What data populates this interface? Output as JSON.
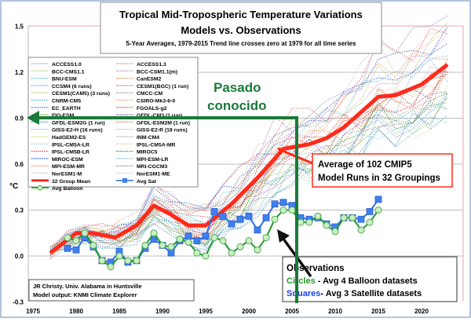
{
  "chart_data": {
    "type": "line",
    "title": "Tropical Mid-Tropospheric Temperature Variations",
    "subtitle_line1": "Models vs. Observations",
    "subtitle_line2": "5-Year Averages, 1979-2015 Trend line crosses zero at 1979 for all time series",
    "ylabel": "°C",
    "xlim": [
      1975,
      2025
    ],
    "ylim": [
      -0.3,
      1.5
    ],
    "x_ticks": [
      "1975",
      "1980",
      "1985",
      "1990",
      "1995",
      "2000",
      "2005",
      "2010",
      "2015",
      "2020"
    ],
    "y_ticks": [
      "1.5",
      "1.2",
      "0.9",
      "0.6",
      "0.3",
      "0.0",
      "-0.3"
    ],
    "grid": "horizontal",
    "legend_position": "top-left",
    "legend_models": [
      {
        "name": "ACCESS1.0",
        "color": "#7fa7d6"
      },
      {
        "name": "ACCESS1.3",
        "color": "#d08a8a"
      },
      {
        "name": "BCC-CMS1.1",
        "color": "#a8c070"
      },
      {
        "name": "BCC-CSM1.1(m)",
        "color": "#9a86c0"
      },
      {
        "name": "BNU-ESM",
        "color": "#5fb8c8"
      },
      {
        "name": "CanESM2",
        "color": "#e09050"
      },
      {
        "name": "CCSM4 (6 runs)",
        "color": "#6f9fd8"
      },
      {
        "name": "CESM1(BGC) (1 run)",
        "color": "#d86060"
      },
      {
        "name": "CESM1(CAM5) (3 runs)",
        "color": "#a0c060"
      },
      {
        "name": "CMCC-CM",
        "color": "#9070b0"
      },
      {
        "name": "CNRM-CM5",
        "color": "#50b0c0"
      },
      {
        "name": "CSIRO-Mk3-6-0",
        "color": "#f0a060"
      },
      {
        "name": "EC_EARTH",
        "color": "#4060c0"
      },
      {
        "name": "FGOALS-g2",
        "color": "#c04040"
      },
      {
        "name": "FIO-ESM",
        "color": "#70a040"
      },
      {
        "name": "GFDL-CM3 (1 run)",
        "color": "#7050a0"
      },
      {
        "name": "GFDL-ESM2G (1 run)",
        "color": "#40a0b0"
      },
      {
        "name": "GFDL-ESM2M (1 run)",
        "color": "#e08040"
      },
      {
        "name": "GISS-E2-H (16 runs)",
        "color": "#8ab0e0"
      },
      {
        "name": "GISS-E2-R (18 runs)",
        "color": "#e0a0a0"
      },
      {
        "name": "HadGEM2-ES",
        "color": "#c0d090"
      },
      {
        "name": "INM-CM4",
        "color": "#b0a0d0"
      },
      {
        "name": "IPSL-CM5A-LR",
        "color": "#90d0e0"
      },
      {
        "name": "IPSL-CM5A-MR",
        "color": "#f0c090"
      },
      {
        "name": "IPSL-CM5B-LR",
        "color": "#ff3030"
      },
      {
        "name": "MIROC5",
        "color": "#20a020"
      },
      {
        "name": "MIROC-ESM",
        "color": "#3050e0"
      },
      {
        "name": "MPI-ESM-LR",
        "color": "#60c0d0"
      },
      {
        "name": "MPI-ESM-MR",
        "color": "#f08050"
      },
      {
        "name": "MRI-CGCM3",
        "color": "#5080c0"
      },
      {
        "name": "NorESM1-M",
        "color": "#e0b0b0"
      },
      {
        "name": "NorESM1-ME",
        "color": "#d0d0a0"
      }
    ],
    "series": [
      {
        "name": "32 Group Mean",
        "color": "#ff2a1a",
        "marker": "none",
        "x": [
          1977,
          1980,
          1982,
          1984.5,
          1987,
          1989,
          1991,
          1993,
          1995,
          1998,
          2001,
          2004,
          2007,
          2009,
          2011,
          2015,
          2017,
          2020,
          2023
        ],
        "y": [
          0.02,
          0.15,
          0.15,
          0.12,
          0.2,
          0.33,
          0.27,
          0.2,
          0.2,
          0.34,
          0.51,
          0.7,
          0.73,
          0.77,
          0.84,
          1.04,
          1.05,
          1.12,
          1.25
        ]
      },
      {
        "name": "Avg Sat",
        "color": "#2f6fe8",
        "marker": "square",
        "x": [
          1979,
          1980,
          1981,
          1982,
          1983,
          1984,
          1985,
          1986,
          1987,
          1988,
          1989,
          1990,
          1991,
          1992,
          1993,
          1994,
          1995,
          1996,
          1997,
          1998,
          1999,
          2000,
          2001,
          2002,
          2003,
          2004,
          2005,
          2006,
          2007,
          2008,
          2009,
          2010,
          2011,
          2012,
          2013,
          2014,
          2015
        ],
        "y": [
          0.05,
          0.04,
          0.12,
          0.06,
          -0.03,
          -0.04,
          0.03,
          -0.04,
          -0.03,
          0.05,
          0.11,
          0.07,
          0.02,
          0.1,
          0.13,
          0.1,
          0.13,
          0.29,
          0.26,
          0.21,
          0.24,
          0.26,
          0.17,
          0.25,
          0.34,
          0.35,
          0.33,
          0.25,
          0.24,
          0.25,
          0.21,
          0.19,
          0.25,
          0.25,
          0.24,
          0.29,
          0.37
        ]
      },
      {
        "name": "Avg Balloon",
        "color": "#1f9a2a",
        "marker": "circle",
        "x": [
          1979,
          1980,
          1981,
          1982,
          1983,
          1984,
          1985,
          1986,
          1987,
          1988,
          1989,
          1990,
          1991,
          1992,
          1993,
          1994,
          1995,
          1996,
          1997,
          1998,
          1999,
          2000,
          2001,
          2002,
          2003,
          2004,
          2005,
          2006,
          2007,
          2008,
          2009,
          2010,
          2011,
          2012,
          2013,
          2014,
          2015
        ],
        "y": [
          0.12,
          0.1,
          0.15,
          0.07,
          -0.03,
          -0.07,
          0.0,
          -0.03,
          -0.03,
          0.07,
          0.15,
          0.07,
          0.06,
          0.11,
          0.09,
          0.02,
          0.0,
          0.12,
          0.1,
          0.02,
          0.06,
          0.1,
          0.04,
          0.12,
          0.24,
          0.3,
          0.3,
          0.22,
          0.22,
          0.26,
          0.2,
          0.16,
          0.25,
          0.25,
          0.17,
          0.22,
          0.3
        ]
      }
    ],
    "annotations": {
      "callout_line1": "Average of 102 CMIP5",
      "callout_line2": "Model Runs in 32 Groupings",
      "green_label_line1": "Pasado",
      "green_label_line2": "conocido",
      "obs_title": "Observations",
      "obs_circles_word": "Circles",
      "obs_circles_rest": " - Avg 4 Balloon datasets",
      "obs_squares_word": "Squares",
      "obs_squares_rest": "- Avg 3 Satellite datasets",
      "credit_line1": "JR Christy. Univ. Alabama in Huntsville",
      "credit_line2": "Model output: KNMI Climate Explorer"
    }
  }
}
